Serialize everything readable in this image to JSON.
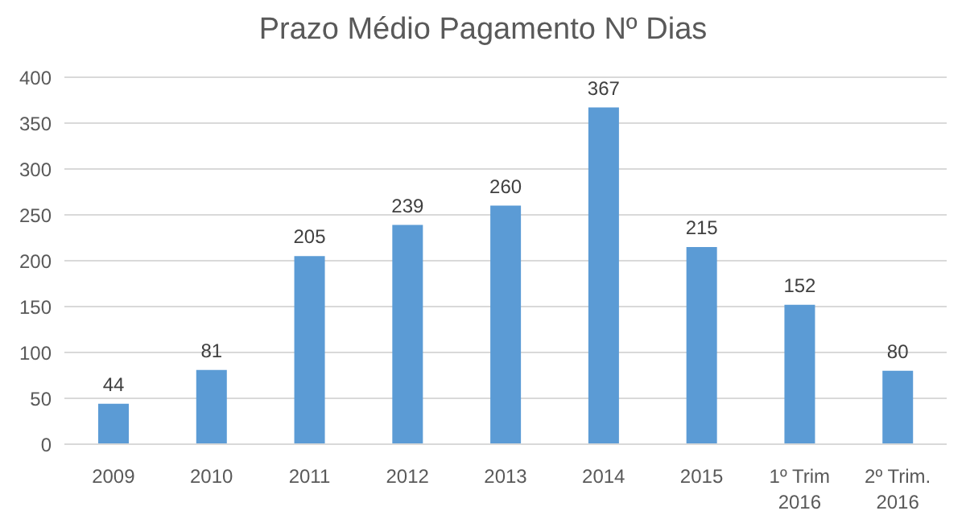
{
  "chart_data": {
    "type": "bar",
    "title": "Prazo Médio Pagamento  Nº Dias",
    "categories": [
      "2009",
      "2010",
      "2011",
      "2012",
      "2013",
      "2014",
      "2015",
      "1º Trim\n2016",
      "2º Trim.\n2016"
    ],
    "values": [
      44,
      81,
      205,
      239,
      260,
      367,
      215,
      152,
      80
    ],
    "color": "#5b9bd5",
    "ylim": [
      0,
      400
    ],
    "yticks": [
      0,
      50,
      100,
      150,
      200,
      250,
      300,
      350,
      400
    ],
    "grid": "y",
    "data_labels": true
  }
}
